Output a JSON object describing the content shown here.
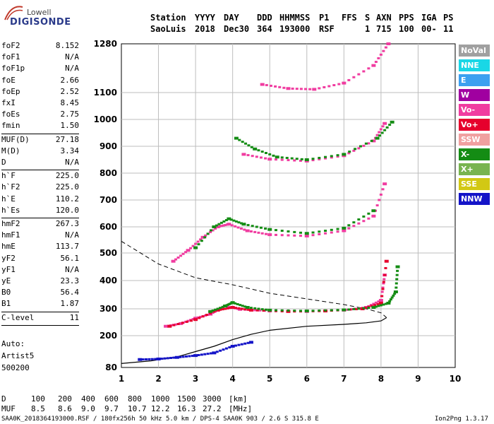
{
  "logo": {
    "line1": "Lowell",
    "line2": "DIGISONDE"
  },
  "header": {
    "labels": [
      "Station",
      "YYYY",
      "DAY",
      "DDD",
      "HHMMSS",
      "P1",
      "FFS",
      "S",
      "AXN",
      "PPS",
      "IGA",
      "PS"
    ],
    "values": [
      "SaoLuis",
      "2018",
      "Dec30",
      "364",
      "193000",
      "RSF",
      "1",
      "715",
      "100",
      "00-",
      "11"
    ]
  },
  "params": [
    {
      "name": "foF2",
      "value": "8.152"
    },
    {
      "name": "foF1",
      "value": "N/A"
    },
    {
      "name": "foF1p",
      "value": "N/A"
    },
    {
      "name": "foE",
      "value": "2.66"
    },
    {
      "name": "foEp",
      "value": "2.52"
    },
    {
      "name": "fxI",
      "value": "8.45"
    },
    {
      "name": "foEs",
      "value": "2.75"
    },
    {
      "name": "fmin",
      "value": "1.50"
    },
    {
      "name": "MUF(D)",
      "value": "27.18"
    },
    {
      "name": "M(D)",
      "value": "3.34"
    },
    {
      "name": "D",
      "value": "N/A"
    },
    {
      "name": "h`F",
      "value": "225.0"
    },
    {
      "name": "h`F2",
      "value": "225.0"
    },
    {
      "name": "h`E",
      "value": "110.2"
    },
    {
      "name": "h`Es",
      "value": "120.0"
    },
    {
      "name": "hmF2",
      "value": "267.3"
    },
    {
      "name": "hmF1",
      "value": "N/A"
    },
    {
      "name": "hmE",
      "value": "113.7"
    },
    {
      "name": "yF2",
      "value": "56.1"
    },
    {
      "name": "yF1",
      "value": "N/A"
    },
    {
      "name": "yE",
      "value": "23.3"
    },
    {
      "name": "B0",
      "value": "56.4"
    },
    {
      "name": "B1",
      "value": "1.87"
    },
    {
      "name": "C-level",
      "value": "11"
    }
  ],
  "auto": {
    "line1": "Auto:",
    "line2": "Artist5",
    "line3": "500200"
  },
  "legend": [
    {
      "label": "NoVal",
      "color": "#a0a0a0"
    },
    {
      "label": "NNE",
      "color": "#19d7e6"
    },
    {
      "label": "E",
      "color": "#3ca0f0"
    },
    {
      "label": "W",
      "color": "#a000a0"
    },
    {
      "label": "Vo-",
      "color": "#f03ca0"
    },
    {
      "label": "Vo+",
      "color": "#e6002d"
    },
    {
      "label": "SSW",
      "color": "#f0a0a0"
    },
    {
      "label": "X-",
      "color": "#148c14"
    },
    {
      "label": "X+",
      "color": "#78b450"
    },
    {
      "label": "SSE",
      "color": "#d2c814"
    },
    {
      "label": "NNW",
      "color": "#1414c8"
    }
  ],
  "footer": {
    "d_label": "D",
    "d_values": [
      "100",
      "200",
      "400",
      "600",
      "800",
      "1000",
      "1500",
      "3000"
    ],
    "d_unit": "[km]",
    "muf_label": "MUF",
    "muf_values": [
      "8.5",
      "8.6",
      "9.0",
      "9.7",
      "10.7",
      "12.2",
      "16.3",
      "27.2"
    ],
    "muf_unit": "[MHz]",
    "info": "SAA0K_2018364193000.RSF / 180fx256h 50 kHz 5.0 km / DPS-4 SAA0K 903 / 2.6 S 315.8 E",
    "version": "Ion2Png 1.3.17"
  },
  "chart_data": {
    "type": "scatter",
    "xlim": [
      1,
      10
    ],
    "ylim": [
      80,
      1280
    ],
    "x_ticks": [
      1,
      2,
      3,
      4,
      5,
      6,
      7,
      8,
      9,
      10
    ],
    "y_ticks": [
      80,
      200,
      300,
      400,
      500,
      600,
      700,
      800,
      900,
      1000,
      1100,
      1280
    ],
    "grid": true,
    "series": [
      {
        "name": "Vo-",
        "color": "#f03ca0",
        "x": [
          2.2,
          2.6,
          3.0,
          3.4,
          3.8,
          4.2,
          5.0,
          6.0,
          7.0,
          7.6,
          8.0,
          8.1
        ],
        "y": [
          235,
          245,
          265,
          280,
          310,
          298,
          292,
          290,
          295,
          305,
          330,
          420
        ]
      },
      {
        "name": "Vo+",
        "color": "#e6002d",
        "x": [
          2.3,
          3.0,
          3.6,
          4.0,
          4.5,
          5.5,
          6.5,
          7.5,
          8.0,
          8.15
        ],
        "y": [
          235,
          260,
          295,
          305,
          295,
          290,
          292,
          300,
          320,
          470
        ]
      },
      {
        "name": "X-",
        "color": "#148c14",
        "x": [
          3.4,
          3.8,
          4.0,
          4.4,
          5.0,
          6.0,
          7.0,
          7.8,
          8.2,
          8.4,
          8.45
        ],
        "y": [
          290,
          310,
          322,
          305,
          295,
          292,
          296,
          305,
          320,
          360,
          450
        ]
      },
      {
        "name": "Vo- 2nd hop",
        "color": "#f03ca0",
        "x": [
          2.4,
          2.8,
          3.2,
          3.6,
          3.9,
          4.4,
          5.0,
          6.0,
          7.0,
          7.8,
          8.1
        ],
        "y": [
          470,
          510,
          560,
          600,
          610,
          585,
          570,
          565,
          585,
          640,
          760
        ]
      },
      {
        "name": "X- 2nd hop",
        "color": "#148c14",
        "x": [
          3.0,
          3.5,
          3.9,
          4.3,
          5.0,
          6.0,
          7.0,
          7.8
        ],
        "y": [
          520,
          600,
          630,
          610,
          590,
          575,
          595,
          660
        ]
      },
      {
        "name": "Vo- 3rd hop",
        "color": "#f03ca0",
        "x": [
          4.3,
          5.0,
          6.0,
          7.0,
          7.8,
          8.1
        ],
        "y": [
          870,
          852,
          845,
          865,
          920,
          985
        ]
      },
      {
        "name": "X- 3rd hop",
        "color": "#148c14",
        "x": [
          4.1,
          4.6,
          5.2,
          6.0,
          7.0,
          7.9,
          8.3
        ],
        "y": [
          930,
          890,
          860,
          850,
          870,
          930,
          990
        ]
      },
      {
        "name": "Vo- 4th hop",
        "color": "#f03ca0",
        "x": [
          4.8,
          5.5,
          6.2,
          7.0,
          7.8,
          8.2
        ],
        "y": [
          1130,
          1115,
          1112,
          1135,
          1200,
          1280
        ]
      },
      {
        "name": "Es",
        "color": "#1414c8",
        "x": [
          1.5,
          2.0,
          2.5,
          3.0,
          3.5,
          4.0,
          4.5
        ],
        "y": [
          110,
          112,
          118,
          125,
          135,
          160,
          175
        ]
      }
    ],
    "profile": {
      "x": [
        1.0,
        1.8,
        2.5,
        3.0,
        3.5,
        4.0,
        4.5,
        5.0,
        6.0,
        7.0,
        7.6,
        8.0,
        8.15
      ],
      "y": [
        95,
        105,
        120,
        140,
        160,
        185,
        205,
        220,
        235,
        242,
        248,
        255,
        267
      ]
    },
    "profile_topside": {
      "x": [
        1.0,
        2.0,
        3.0,
        4.0,
        5.0,
        6.0,
        7.0,
        7.6,
        8.0,
        8.15
      ],
      "y": [
        545,
        460,
        410,
        385,
        355,
        335,
        315,
        300,
        285,
        267
      ]
    }
  }
}
